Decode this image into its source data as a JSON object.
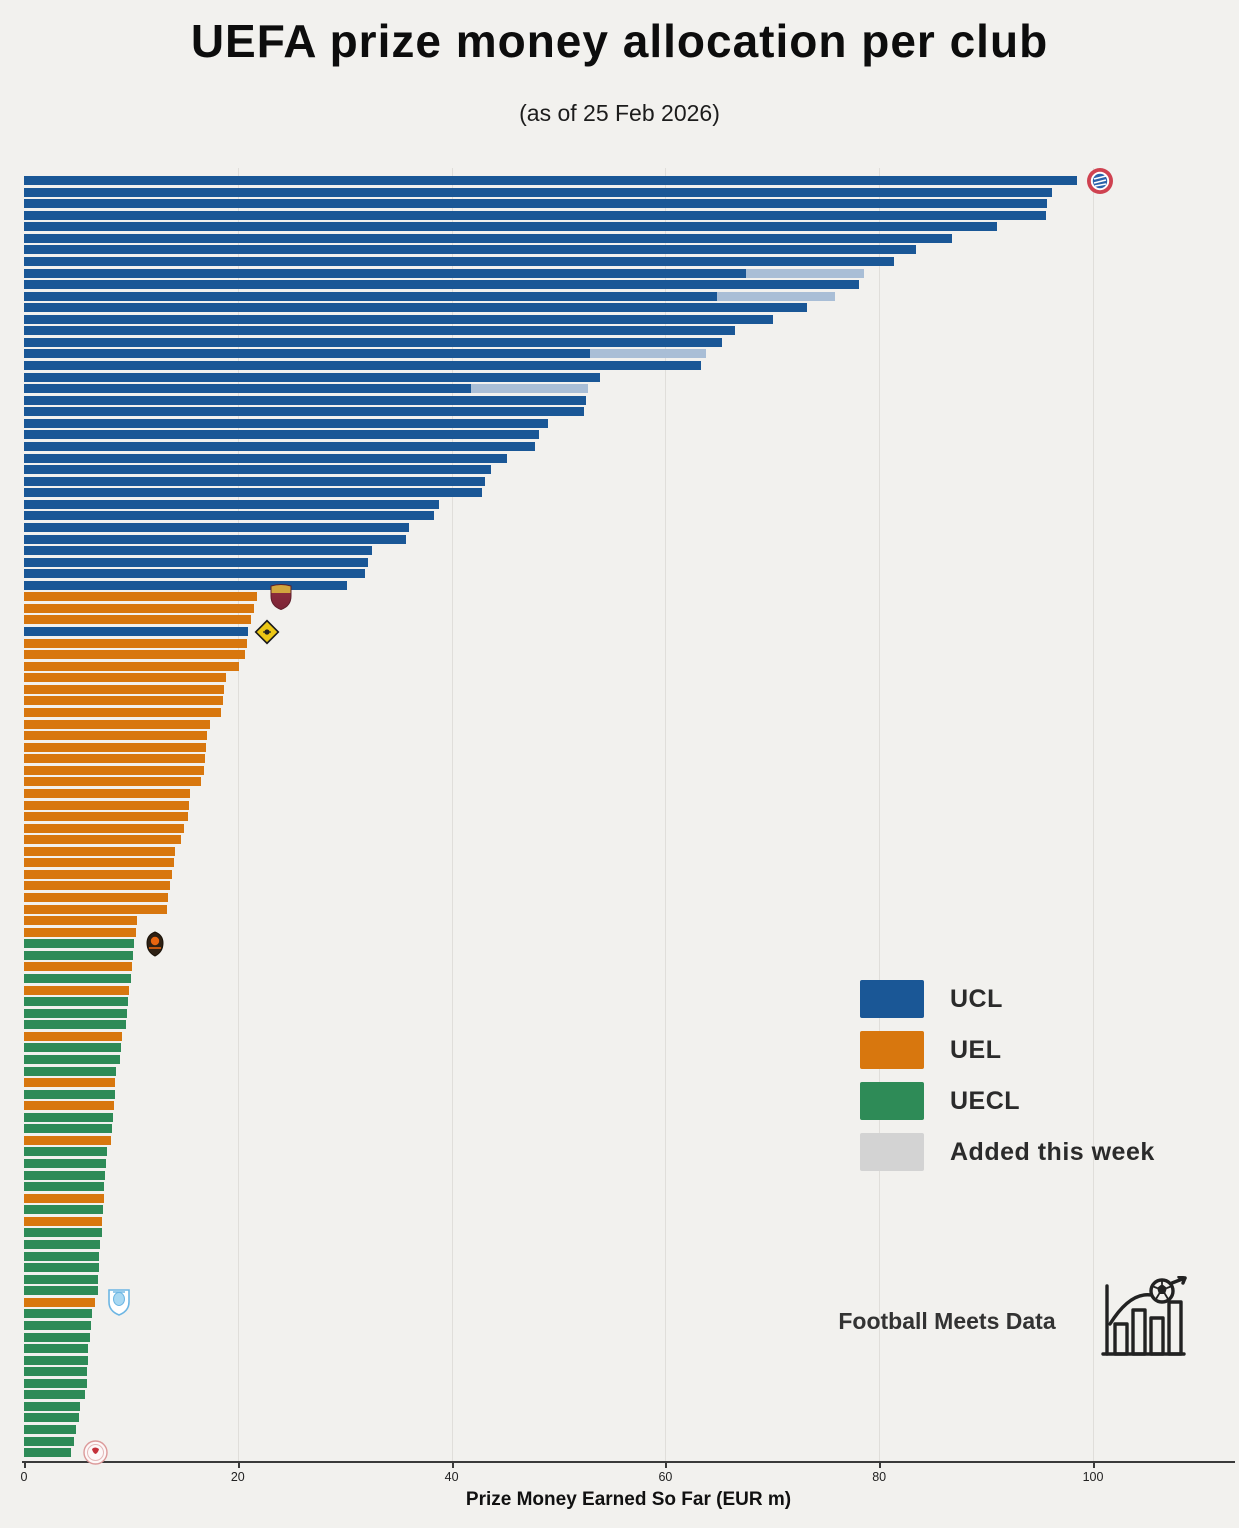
{
  "header": {
    "title": "UEFA prize money allocation per club",
    "subtitle": "(as of 25 Feb 2026)"
  },
  "watermark": {
    "text": "Football Meets Data",
    "icon": "football-bar-chart-logo"
  },
  "palette": {
    "UCL": "#1a5796",
    "UEL": "#d8770e",
    "UECL": "#2e8b57",
    "added_segment": "#a9bed6",
    "legend_added": "#d3d3d3",
    "background": "#f2f1ee",
    "axis": "#3a3a3a"
  },
  "legend": [
    {
      "label": "UCL",
      "color": "#1a5796"
    },
    {
      "label": "UEL",
      "color": "#d8770e"
    },
    {
      "label": "UECL",
      "color": "#2e8b57"
    },
    {
      "label": "Added this week",
      "color": "#d3d3d3"
    }
  ],
  "crests": [
    {
      "id": "bayern-munich-crest",
      "bar": 0,
      "shape": "red-white-blue-roundel"
    },
    {
      "id": "as-roma-crest",
      "bar": 36,
      "shape": "maroon-gold-shield"
    },
    {
      "id": "kairat-yellow-diamond-crest",
      "bar": 39,
      "shape": "yellow-black-diamond"
    },
    {
      "id": "shakhtar-donetsk-crest",
      "bar": 66,
      "shape": "dark-orange-shield"
    },
    {
      "id": "malmo-ff-crest",
      "bar": 97,
      "shape": "white-skyblue-shield"
    },
    {
      "id": "lincoln-red-imps-crest",
      "bar": 110,
      "shape": "white-red-roundel"
    }
  ],
  "chart_data": {
    "type": "bar",
    "orientation": "horizontal",
    "title": "UEFA prize money allocation per club",
    "subtitle": "(as of 25 Feb 2026)",
    "xlabel": "Prize Money Earned So Far (EUR m)",
    "ylabel": "",
    "xlim": [
      0,
      113
    ],
    "xticks": [
      0,
      20,
      40,
      60,
      80,
      100
    ],
    "grid": "vertical-light",
    "legend_position": "right-center",
    "series_note": "Each bar = one club, sorted descending; color = competition; 'added_to' = total after this week's gray addition",
    "bars": [
      {
        "v": 98.5,
        "c": "UCL",
        "crest": "bayern-munich-crest"
      },
      {
        "v": 96.2,
        "c": "UCL"
      },
      {
        "v": 95.7,
        "c": "UCL"
      },
      {
        "v": 95.6,
        "c": "UCL"
      },
      {
        "v": 91.0,
        "c": "UCL"
      },
      {
        "v": 86.8,
        "c": "UCL"
      },
      {
        "v": 83.4,
        "c": "UCL"
      },
      {
        "v": 81.4,
        "c": "UCL"
      },
      {
        "v": 67.5,
        "c": "UCL",
        "added_to": 78.6
      },
      {
        "v": 78.1,
        "c": "UCL"
      },
      {
        "v": 64.8,
        "c": "UCL",
        "added_to": 75.9
      },
      {
        "v": 73.2,
        "c": "UCL"
      },
      {
        "v": 70.1,
        "c": "UCL"
      },
      {
        "v": 66.5,
        "c": "UCL"
      },
      {
        "v": 65.3,
        "c": "UCL"
      },
      {
        "v": 52.9,
        "c": "UCL",
        "added_to": 63.8
      },
      {
        "v": 63.3,
        "c": "UCL"
      },
      {
        "v": 53.9,
        "c": "UCL"
      },
      {
        "v": 41.8,
        "c": "UCL",
        "added_to": 52.8
      },
      {
        "v": 52.6,
        "c": "UCL"
      },
      {
        "v": 52.4,
        "c": "UCL"
      },
      {
        "v": 49.0,
        "c": "UCL"
      },
      {
        "v": 48.2,
        "c": "UCL"
      },
      {
        "v": 47.8,
        "c": "UCL"
      },
      {
        "v": 45.2,
        "c": "UCL"
      },
      {
        "v": 43.7,
        "c": "UCL"
      },
      {
        "v": 43.1,
        "c": "UCL"
      },
      {
        "v": 42.8,
        "c": "UCL"
      },
      {
        "v": 38.8,
        "c": "UCL"
      },
      {
        "v": 38.4,
        "c": "UCL"
      },
      {
        "v": 36.0,
        "c": "UCL"
      },
      {
        "v": 35.7,
        "c": "UCL"
      },
      {
        "v": 32.6,
        "c": "UCL"
      },
      {
        "v": 32.2,
        "c": "UCL"
      },
      {
        "v": 31.9,
        "c": "UCL"
      },
      {
        "v": 30.2,
        "c": "UCL"
      },
      {
        "v": 21.8,
        "c": "UEL",
        "crest": "as-roma-crest"
      },
      {
        "v": 21.5,
        "c": "UEL"
      },
      {
        "v": 21.2,
        "c": "UEL"
      },
      {
        "v": 21.0,
        "c": "UCL",
        "crest": "kairat-yellow-diamond-crest"
      },
      {
        "v": 20.9,
        "c": "UEL"
      },
      {
        "v": 20.7,
        "c": "UEL"
      },
      {
        "v": 20.1,
        "c": "UEL"
      },
      {
        "v": 18.9,
        "c": "UEL"
      },
      {
        "v": 18.7,
        "c": "UEL"
      },
      {
        "v": 18.6,
        "c": "UEL"
      },
      {
        "v": 18.4,
        "c": "UEL"
      },
      {
        "v": 17.4,
        "c": "UEL"
      },
      {
        "v": 17.1,
        "c": "UEL"
      },
      {
        "v": 17.0,
        "c": "UEL"
      },
      {
        "v": 16.9,
        "c": "UEL"
      },
      {
        "v": 16.8,
        "c": "UEL"
      },
      {
        "v": 16.6,
        "c": "UEL"
      },
      {
        "v": 15.5,
        "c": "UEL"
      },
      {
        "v": 15.4,
        "c": "UEL"
      },
      {
        "v": 15.3,
        "c": "UEL"
      },
      {
        "v": 15.0,
        "c": "UEL"
      },
      {
        "v": 14.7,
        "c": "UEL"
      },
      {
        "v": 14.1,
        "c": "UEL"
      },
      {
        "v": 14.0,
        "c": "UEL"
      },
      {
        "v": 13.8,
        "c": "UEL"
      },
      {
        "v": 13.7,
        "c": "UEL"
      },
      {
        "v": 13.5,
        "c": "UEL"
      },
      {
        "v": 13.4,
        "c": "UEL"
      },
      {
        "v": 10.6,
        "c": "UEL"
      },
      {
        "v": 10.5,
        "c": "UEL"
      },
      {
        "v": 10.3,
        "c": "UECL",
        "crest": "shakhtar-donetsk-crest"
      },
      {
        "v": 10.2,
        "c": "UECL"
      },
      {
        "v": 10.1,
        "c": "UEL"
      },
      {
        "v": 10.0,
        "c": "UECL"
      },
      {
        "v": 9.8,
        "c": "UEL"
      },
      {
        "v": 9.75,
        "c": "UECL"
      },
      {
        "v": 9.65,
        "c": "UECL"
      },
      {
        "v": 9.5,
        "c": "UECL"
      },
      {
        "v": 9.2,
        "c": "UEL"
      },
      {
        "v": 9.05,
        "c": "UECL"
      },
      {
        "v": 9.0,
        "c": "UECL"
      },
      {
        "v": 8.65,
        "c": "UECL"
      },
      {
        "v": 8.55,
        "c": "UEL"
      },
      {
        "v": 8.5,
        "c": "UECL"
      },
      {
        "v": 8.4,
        "c": "UEL"
      },
      {
        "v": 8.3,
        "c": "UECL"
      },
      {
        "v": 8.25,
        "c": "UECL"
      },
      {
        "v": 8.15,
        "c": "UEL"
      },
      {
        "v": 7.8,
        "c": "UECL"
      },
      {
        "v": 7.65,
        "c": "UECL"
      },
      {
        "v": 7.6,
        "c": "UECL"
      },
      {
        "v": 7.5,
        "c": "UECL"
      },
      {
        "v": 7.45,
        "c": "UEL"
      },
      {
        "v": 7.4,
        "c": "UECL"
      },
      {
        "v": 7.3,
        "c": "UEL"
      },
      {
        "v": 7.25,
        "c": "UECL"
      },
      {
        "v": 7.1,
        "c": "UECL"
      },
      {
        "v": 7.05,
        "c": "UECL"
      },
      {
        "v": 7.0,
        "c": "UECL"
      },
      {
        "v": 6.95,
        "c": "UECL"
      },
      {
        "v": 6.9,
        "c": "UECL"
      },
      {
        "v": 6.6,
        "c": "UEL",
        "crest": "malmo-ff-crest"
      },
      {
        "v": 6.4,
        "c": "UECL"
      },
      {
        "v": 6.3,
        "c": "UECL"
      },
      {
        "v": 6.2,
        "c": "UECL"
      },
      {
        "v": 6.0,
        "c": "UECL"
      },
      {
        "v": 5.95,
        "c": "UECL"
      },
      {
        "v": 5.9,
        "c": "UECL"
      },
      {
        "v": 5.85,
        "c": "UECL"
      },
      {
        "v": 5.7,
        "c": "UECL"
      },
      {
        "v": 5.2,
        "c": "UECL"
      },
      {
        "v": 5.1,
        "c": "UECL"
      },
      {
        "v": 4.9,
        "c": "UECL"
      },
      {
        "v": 4.7,
        "c": "UECL"
      },
      {
        "v": 4.4,
        "c": "UECL",
        "crest": "lincoln-red-imps-crest"
      }
    ]
  }
}
